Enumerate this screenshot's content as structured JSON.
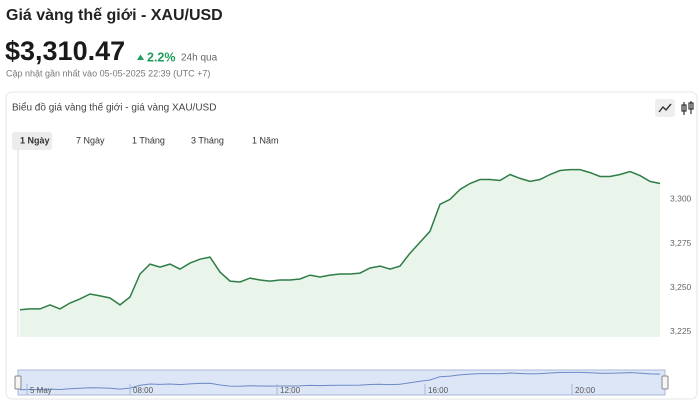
{
  "header": {
    "title": "Giá vàng thế giới - XAU/USD",
    "price": "$3,310.47",
    "change": "2.2%",
    "change_period": "24h qua",
    "updated": "Cập nhật gần nhất vào 05-05-2025 22:39 (UTC +7)"
  },
  "controls": {
    "tabs": [
      "1 Ngày",
      "7 Ngày",
      "1 Tháng",
      "3 Tháng",
      "1 Năm"
    ]
  },
  "chart_data": {
    "type": "area",
    "title": "Biểu đồ giá vàng thế giới - giá vàng XAU/USD",
    "values": [
      3237.4,
      3237.9,
      3237.9,
      3240.2,
      3237.9,
      3241.3,
      3243.6,
      3246.4,
      3245.3,
      3244.1,
      3240.2,
      3244.7,
      3257.7,
      3263.3,
      3261.6,
      3263.3,
      3260.5,
      3263.9,
      3266.1,
      3267.3,
      3258.8,
      3253.7,
      3253.2,
      3255.4,
      3254.3,
      3253.7,
      3254.3,
      3254.3,
      3254.9,
      3257.1,
      3256.0,
      3257.1,
      3257.7,
      3257.7,
      3258.2,
      3261.1,
      3262.2,
      3260.5,
      3262.2,
      3269.5,
      3275.7,
      3281.9,
      3297.2,
      3300,
      3305.6,
      3309.0,
      3311.3,
      3311.3,
      3310.7,
      3314.1,
      3311.9,
      3310.2,
      3311.3,
      3314.1,
      3316.4,
      3316.9,
      3316.9,
      3315.2,
      3313.0,
      3313.0,
      3314.1,
      3315.8,
      3313.5,
      3310.2,
      3309.0
    ],
    "color": "#2f7d46",
    "fill": "#e9f5eb",
    "ylim": [
      3222,
      3328
    ],
    "yticks": [
      {
        "value": 3225,
        "label": "3,225"
      },
      {
        "value": 3250,
        "label": "3,250"
      },
      {
        "value": 3275,
        "label": "3,275"
      },
      {
        "value": 3300,
        "label": "3,300"
      }
    ],
    "grid": false,
    "navigator_labels": [
      "5 May",
      "08:00",
      "12:00",
      "16:00",
      "20:00"
    ]
  }
}
